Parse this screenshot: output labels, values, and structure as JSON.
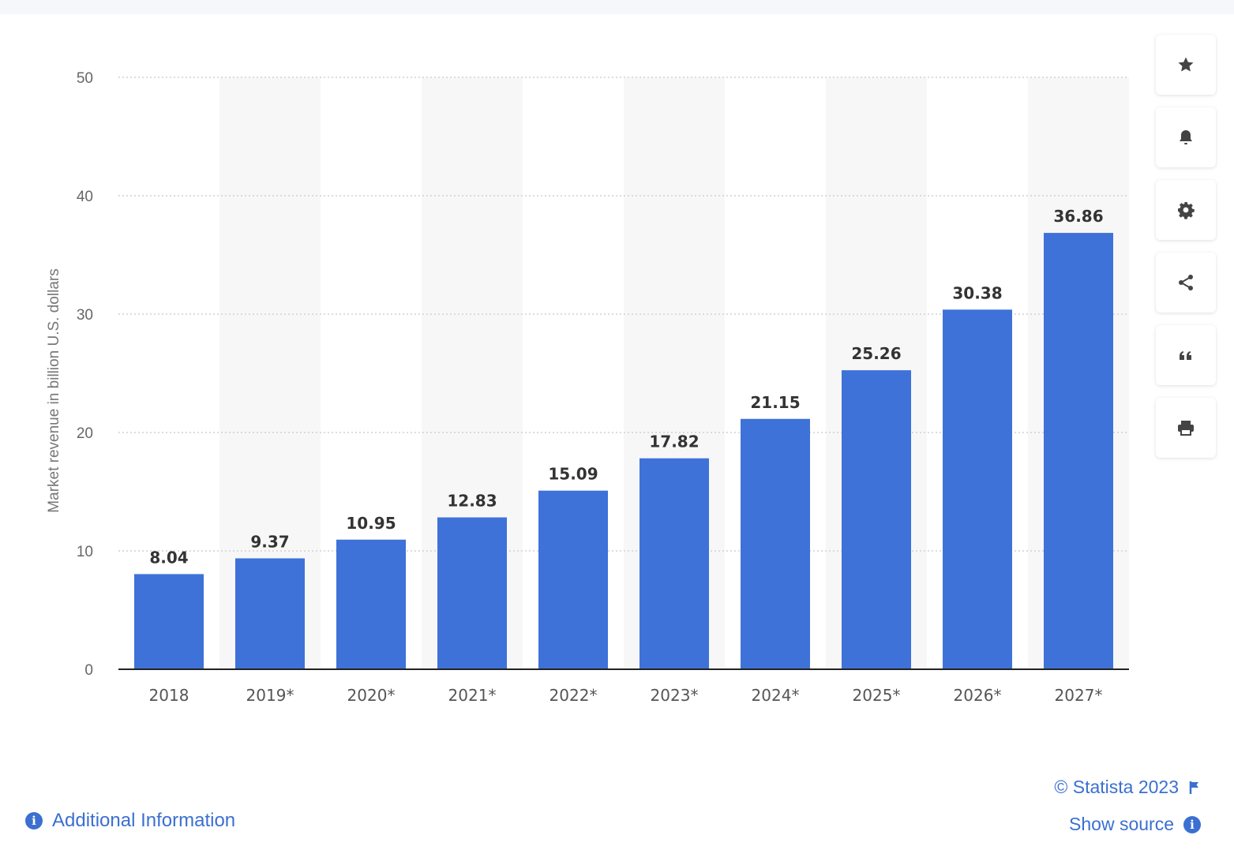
{
  "chart_data": {
    "type": "bar",
    "categories": [
      "2018",
      "2019*",
      "2020*",
      "2021*",
      "2022*",
      "2023*",
      "2024*",
      "2025*",
      "2026*",
      "2027*"
    ],
    "values": [
      8.04,
      9.37,
      10.95,
      12.83,
      15.09,
      17.82,
      21.15,
      25.26,
      30.38,
      36.86
    ],
    "value_labels": [
      "8.04",
      "9.37",
      "10.95",
      "12.83",
      "15.09",
      "17.82",
      "21.15",
      "25.26",
      "30.38",
      "36.86"
    ],
    "ylabel": "Market revenue in billion U.S. dollars",
    "ylim": [
      0,
      50
    ],
    "yticks": [
      "0",
      "10",
      "20",
      "30",
      "40",
      "50"
    ],
    "grid": true,
    "bar_color": "#3e72d8"
  },
  "footer": {
    "additional_info": "Additional Information",
    "copyright": "© Statista 2023",
    "show_source": "Show source",
    "info_glyph": "i"
  },
  "toolbar": {
    "icons": [
      "star-icon",
      "bell-icon",
      "gear-icon",
      "share-icon",
      "quote-icon",
      "print-icon"
    ]
  }
}
